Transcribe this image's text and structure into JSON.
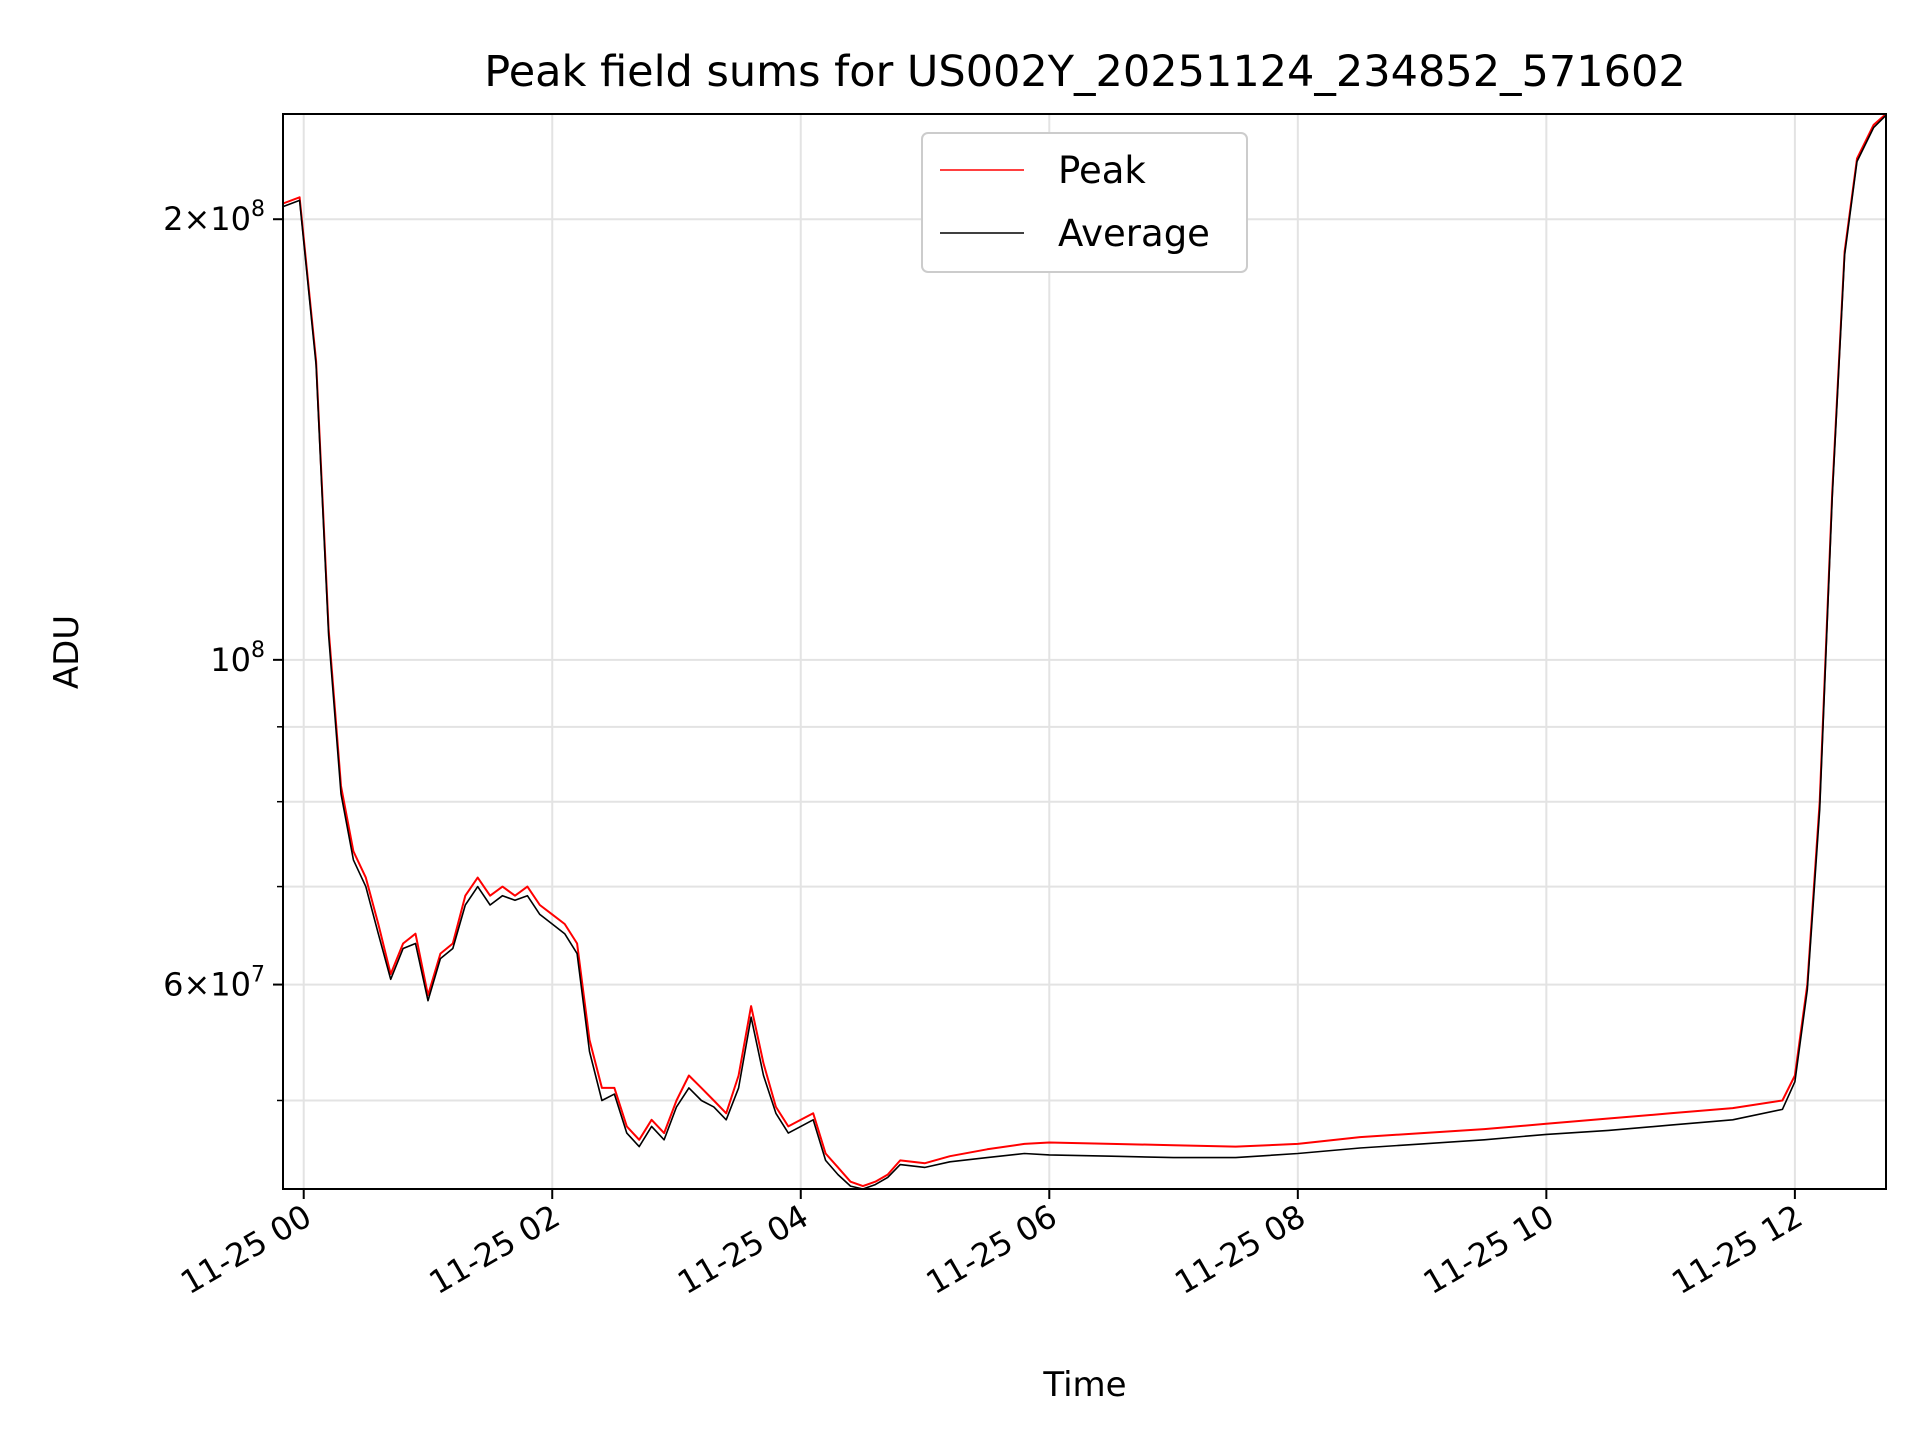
{
  "chart_data": {
    "type": "line",
    "title": "Peak field sums for US002Y_20251124_234852_571602",
    "xlabel": "Time",
    "ylabel": "ADU",
    "y_scale": "log",
    "ylim": [
      43500000,
      236000000
    ],
    "xlim": [
      "2025-11-24 23:50",
      "2025-11-25 12:44"
    ],
    "x_ticks": [
      {
        "t": "2025-11-25 00:00",
        "label": "11-25 00"
      },
      {
        "t": "2025-11-25 02:00",
        "label": "11-25 02"
      },
      {
        "t": "2025-11-25 04:00",
        "label": "11-25 04"
      },
      {
        "t": "2025-11-25 06:00",
        "label": "11-25 06"
      },
      {
        "t": "2025-11-25 08:00",
        "label": "11-25 08"
      },
      {
        "t": "2025-11-25 10:00",
        "label": "11-25 10"
      },
      {
        "t": "2025-11-25 12:00",
        "label": "11-25 12"
      }
    ],
    "y_ticks_major": [
      {
        "value": 100000000,
        "base": "10",
        "exp": "8"
      },
      {
        "value": 200000000,
        "coef": "2",
        "base": "10",
        "exp": "8"
      },
      {
        "value": 60000000,
        "coef": "6",
        "base": "10",
        "exp": "7"
      }
    ],
    "y_ticks_minor": [
      50000000,
      70000000,
      80000000,
      90000000
    ],
    "grid": true,
    "legend_position": "top-center",
    "series": [
      {
        "name": "Peak",
        "color": "#ff0000",
        "points": [
          [
            "2025-11-24 23:50",
            205000000
          ],
          [
            "2025-11-24 23:58",
            207000000
          ],
          [
            "2025-11-25 00:06",
            160000000
          ],
          [
            "2025-11-25 00:12",
            105000000
          ],
          [
            "2025-11-25 00:18",
            82000000
          ],
          [
            "2025-11-25 00:24",
            74000000
          ],
          [
            "2025-11-25 00:30",
            71000000
          ],
          [
            "2025-11-25 00:36",
            66000000
          ],
          [
            "2025-11-25 00:42",
            61000000
          ],
          [
            "2025-11-25 00:48",
            64000000
          ],
          [
            "2025-11-25 00:54",
            65000000
          ],
          [
            "2025-11-25 01:00",
            59000000
          ],
          [
            "2025-11-25 01:06",
            63000000
          ],
          [
            "2025-11-25 01:12",
            64000000
          ],
          [
            "2025-11-25 01:18",
            69000000
          ],
          [
            "2025-11-25 01:24",
            71000000
          ],
          [
            "2025-11-25 01:30",
            69000000
          ],
          [
            "2025-11-25 01:36",
            70000000
          ],
          [
            "2025-11-25 01:42",
            69000000
          ],
          [
            "2025-11-25 01:48",
            70000000
          ],
          [
            "2025-11-25 01:54",
            68000000
          ],
          [
            "2025-11-25 02:00",
            67000000
          ],
          [
            "2025-11-25 02:06",
            66000000
          ],
          [
            "2025-11-25 02:12",
            64000000
          ],
          [
            "2025-11-25 02:18",
            55000000
          ],
          [
            "2025-11-25 02:24",
            51000000
          ],
          [
            "2025-11-25 02:30",
            51000000
          ],
          [
            "2025-11-25 02:36",
            48000000
          ],
          [
            "2025-11-25 02:42",
            47000000
          ],
          [
            "2025-11-25 02:48",
            48500000
          ],
          [
            "2025-11-25 02:54",
            47500000
          ],
          [
            "2025-11-25 03:00",
            50000000
          ],
          [
            "2025-11-25 03:06",
            52000000
          ],
          [
            "2025-11-25 03:12",
            51000000
          ],
          [
            "2025-11-25 03:18",
            50000000
          ],
          [
            "2025-11-25 03:24",
            49000000
          ],
          [
            "2025-11-25 03:30",
            52000000
          ],
          [
            "2025-11-25 03:36",
            58000000
          ],
          [
            "2025-11-25 03:42",
            53000000
          ],
          [
            "2025-11-25 03:48",
            49500000
          ],
          [
            "2025-11-25 03:54",
            48000000
          ],
          [
            "2025-11-25 04:00",
            48500000
          ],
          [
            "2025-11-25 04:06",
            49000000
          ],
          [
            "2025-11-25 04:12",
            46000000
          ],
          [
            "2025-11-25 04:18",
            45000000
          ],
          [
            "2025-11-25 04:24",
            44000000
          ],
          [
            "2025-11-25 04:30",
            43700000
          ],
          [
            "2025-11-25 04:36",
            44000000
          ],
          [
            "2025-11-25 04:42",
            44500000
          ],
          [
            "2025-11-25 04:48",
            45500000
          ],
          [
            "2025-11-25 05:00",
            45300000
          ],
          [
            "2025-11-25 05:12",
            45800000
          ],
          [
            "2025-11-25 05:30",
            46300000
          ],
          [
            "2025-11-25 05:48",
            46700000
          ],
          [
            "2025-11-25 06:00",
            46800000
          ],
          [
            "2025-11-25 06:30",
            46700000
          ],
          [
            "2025-11-25 07:00",
            46600000
          ],
          [
            "2025-11-25 07:30",
            46500000
          ],
          [
            "2025-11-25 08:00",
            46700000
          ],
          [
            "2025-11-25 08:30",
            47200000
          ],
          [
            "2025-11-25 09:00",
            47500000
          ],
          [
            "2025-11-25 09:30",
            47800000
          ],
          [
            "2025-11-25 10:00",
            48200000
          ],
          [
            "2025-11-25 10:30",
            48600000
          ],
          [
            "2025-11-25 11:00",
            49000000
          ],
          [
            "2025-11-25 11:30",
            49400000
          ],
          [
            "2025-11-25 11:54",
            50000000
          ],
          [
            "2025-11-25 12:00",
            52000000
          ],
          [
            "2025-11-25 12:06",
            60000000
          ],
          [
            "2025-11-25 12:12",
            80000000
          ],
          [
            "2025-11-25 12:18",
            130000000
          ],
          [
            "2025-11-25 12:24",
            190000000
          ],
          [
            "2025-11-25 12:30",
            220000000
          ],
          [
            "2025-11-25 12:38",
            232000000
          ],
          [
            "2025-11-25 12:44",
            236000000
          ]
        ]
      },
      {
        "name": "Average",
        "color": "#000000",
        "points": [
          [
            "2025-11-24 23:50",
            204000000
          ],
          [
            "2025-11-24 23:58",
            206000000
          ],
          [
            "2025-11-25 00:06",
            159000000
          ],
          [
            "2025-11-25 00:12",
            104000000
          ],
          [
            "2025-11-25 00:18",
            81000000
          ],
          [
            "2025-11-25 00:24",
            73000000
          ],
          [
            "2025-11-25 00:30",
            70000000
          ],
          [
            "2025-11-25 00:36",
            65000000
          ],
          [
            "2025-11-25 00:42",
            60500000
          ],
          [
            "2025-11-25 00:48",
            63500000
          ],
          [
            "2025-11-25 00:54",
            64000000
          ],
          [
            "2025-11-25 01:00",
            58500000
          ],
          [
            "2025-11-25 01:06",
            62500000
          ],
          [
            "2025-11-25 01:12",
            63500000
          ],
          [
            "2025-11-25 01:18",
            68000000
          ],
          [
            "2025-11-25 01:24",
            70000000
          ],
          [
            "2025-11-25 01:30",
            68000000
          ],
          [
            "2025-11-25 01:36",
            69000000
          ],
          [
            "2025-11-25 01:42",
            68500000
          ],
          [
            "2025-11-25 01:48",
            69000000
          ],
          [
            "2025-11-25 01:54",
            67000000
          ],
          [
            "2025-11-25 02:00",
            66000000
          ],
          [
            "2025-11-25 02:06",
            65000000
          ],
          [
            "2025-11-25 02:12",
            63000000
          ],
          [
            "2025-11-25 02:18",
            54000000
          ],
          [
            "2025-11-25 02:24",
            50000000
          ],
          [
            "2025-11-25 02:30",
            50500000
          ],
          [
            "2025-11-25 02:36",
            47500000
          ],
          [
            "2025-11-25 02:42",
            46500000
          ],
          [
            "2025-11-25 02:48",
            48000000
          ],
          [
            "2025-11-25 02:54",
            47000000
          ],
          [
            "2025-11-25 03:00",
            49500000
          ],
          [
            "2025-11-25 03:06",
            51000000
          ],
          [
            "2025-11-25 03:12",
            50000000
          ],
          [
            "2025-11-25 03:18",
            49500000
          ],
          [
            "2025-11-25 03:24",
            48500000
          ],
          [
            "2025-11-25 03:30",
            51000000
          ],
          [
            "2025-11-25 03:36",
            57000000
          ],
          [
            "2025-11-25 03:42",
            52000000
          ],
          [
            "2025-11-25 03:48",
            49000000
          ],
          [
            "2025-11-25 03:54",
            47500000
          ],
          [
            "2025-11-25 04:00",
            48000000
          ],
          [
            "2025-11-25 04:06",
            48500000
          ],
          [
            "2025-11-25 04:12",
            45500000
          ],
          [
            "2025-11-25 04:18",
            44500000
          ],
          [
            "2025-11-25 04:24",
            43700000
          ],
          [
            "2025-11-25 04:30",
            43500000
          ],
          [
            "2025-11-25 04:36",
            43800000
          ],
          [
            "2025-11-25 04:42",
            44300000
          ],
          [
            "2025-11-25 04:48",
            45200000
          ],
          [
            "2025-11-25 05:00",
            45000000
          ],
          [
            "2025-11-25 05:12",
            45400000
          ],
          [
            "2025-11-25 05:30",
            45700000
          ],
          [
            "2025-11-25 05:48",
            46000000
          ],
          [
            "2025-11-25 06:00",
            45900000
          ],
          [
            "2025-11-25 06:30",
            45800000
          ],
          [
            "2025-11-25 07:00",
            45700000
          ],
          [
            "2025-11-25 07:30",
            45700000
          ],
          [
            "2025-11-25 08:00",
            46000000
          ],
          [
            "2025-11-25 08:30",
            46400000
          ],
          [
            "2025-11-25 09:00",
            46700000
          ],
          [
            "2025-11-25 09:30",
            47000000
          ],
          [
            "2025-11-25 10:00",
            47400000
          ],
          [
            "2025-11-25 10:30",
            47700000
          ],
          [
            "2025-11-25 11:00",
            48100000
          ],
          [
            "2025-11-25 11:30",
            48500000
          ],
          [
            "2025-11-25 11:54",
            49300000
          ],
          [
            "2025-11-25 12:00",
            51500000
          ],
          [
            "2025-11-25 12:06",
            59500000
          ],
          [
            "2025-11-25 12:12",
            79000000
          ],
          [
            "2025-11-25 12:18",
            129000000
          ],
          [
            "2025-11-25 12:24",
            189000000
          ],
          [
            "2025-11-25 12:30",
            219000000
          ],
          [
            "2025-11-25 12:38",
            231000000
          ],
          [
            "2025-11-25 12:44",
            235500000
          ]
        ]
      }
    ]
  }
}
